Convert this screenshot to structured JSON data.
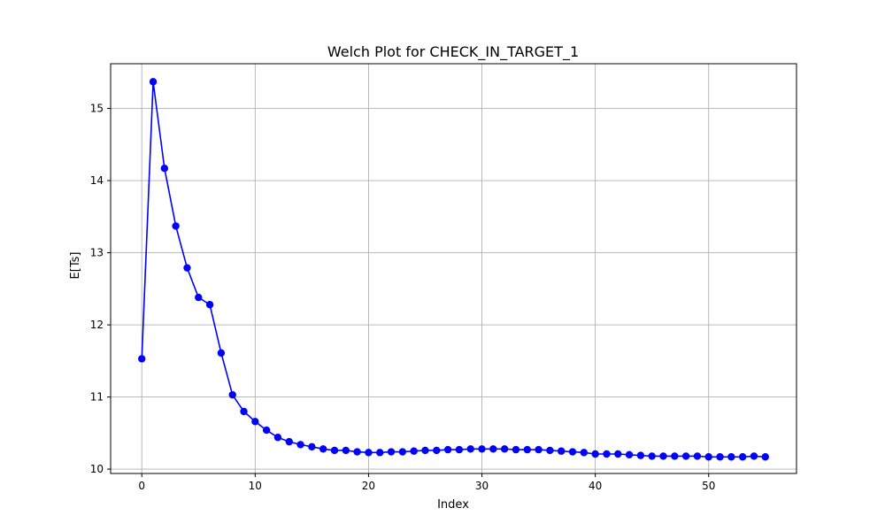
{
  "chart_data": {
    "type": "line",
    "title": "Welch Plot for CHECK_IN_TARGET_1",
    "xlabel": "Index",
    "ylabel": "E[Ts]",
    "xlim": [
      -2.75,
      57.75
    ],
    "ylim": [
      9.94,
      15.62
    ],
    "xticks": [
      0,
      10,
      20,
      30,
      40,
      50
    ],
    "yticks": [
      10,
      11,
      12,
      13,
      14,
      15
    ],
    "grid": true,
    "colors": {
      "series": "#0000ff",
      "grid": "#b0b0b0",
      "axes": "#000000"
    },
    "series": [
      {
        "marker": "circle",
        "x": [
          0,
          1,
          2,
          3,
          4,
          5,
          6,
          7,
          8,
          9,
          10,
          11,
          12,
          13,
          14,
          15,
          16,
          17,
          18,
          19,
          20,
          21,
          22,
          23,
          24,
          25,
          26,
          27,
          28,
          29,
          30,
          31,
          32,
          33,
          34,
          35,
          36,
          37,
          38,
          39,
          40,
          41,
          42,
          43,
          44,
          45,
          46,
          47,
          48,
          49,
          50,
          51,
          52,
          53,
          54,
          55
        ],
        "y": [
          11.53,
          15.37,
          14.17,
          13.37,
          12.79,
          12.38,
          12.28,
          11.61,
          11.03,
          10.8,
          10.66,
          10.54,
          10.44,
          10.38,
          10.34,
          10.31,
          10.28,
          10.26,
          10.26,
          10.24,
          10.23,
          10.23,
          10.24,
          10.24,
          10.25,
          10.26,
          10.26,
          10.27,
          10.27,
          10.28,
          10.28,
          10.28,
          10.28,
          10.27,
          10.27,
          10.27,
          10.26,
          10.25,
          10.24,
          10.23,
          10.21,
          10.21,
          10.21,
          10.2,
          10.19,
          10.18,
          10.18,
          10.18,
          10.18,
          10.18,
          10.17,
          10.17,
          10.17,
          10.17,
          10.18,
          10.17
        ]
      }
    ]
  }
}
